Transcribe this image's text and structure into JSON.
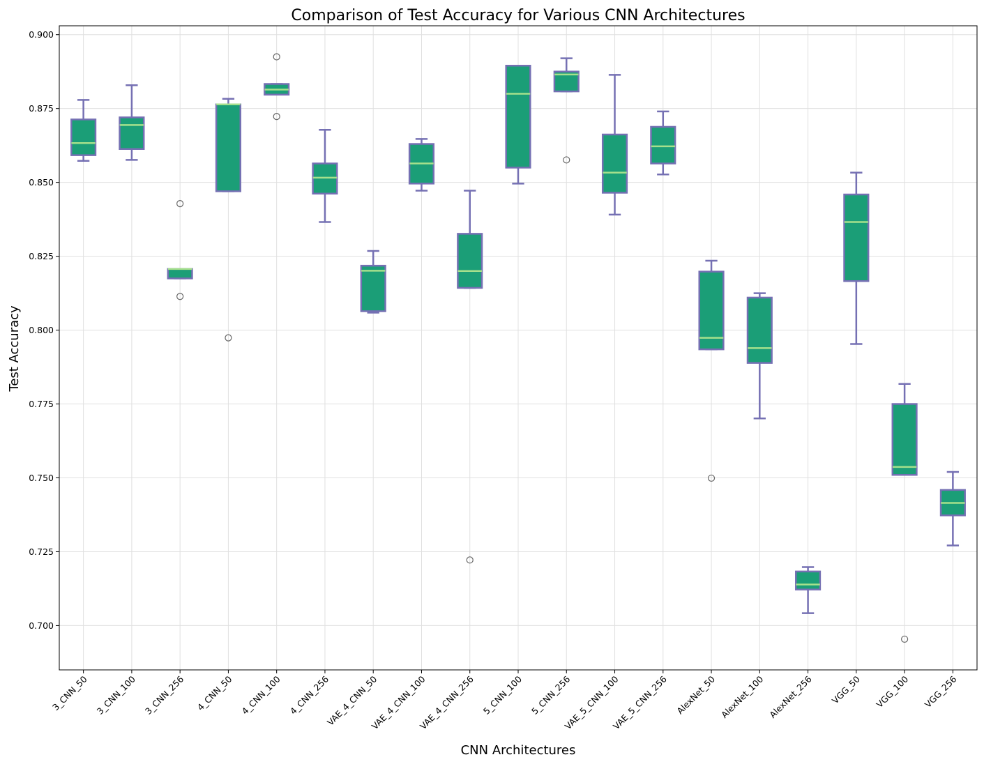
{
  "chart_data": {
    "type": "box",
    "title": "Comparison of Test Accuracy for Various CNN Architectures",
    "xlabel": "CNN Architectures",
    "ylabel": "Test Accuracy",
    "ylim": [
      0.685,
      0.903
    ],
    "yticks": [
      "0.700",
      "0.725",
      "0.750",
      "0.775",
      "0.800",
      "0.825",
      "0.850",
      "0.875",
      "0.900"
    ],
    "grid": true,
    "colors": {
      "box_fill": "#1b9e77",
      "box_edge": "#7570b3",
      "whisker": "#7570b3",
      "median": "#a6e08c",
      "outlier": "#666666"
    },
    "categories": [
      "3_CNN_50",
      "3_CNN_100",
      "3_CNN_256",
      "4_CNN_50",
      "4_CNN_100",
      "4_CNN_256",
      "VAE_4_CNN_50",
      "VAE_4_CNN_100",
      "VAE_4_CNN_256",
      "5_CNN_100",
      "5_CNN_256",
      "VAE_5_CNN_100",
      "VAE_5_CNN_256",
      "AlexNet_50",
      "AlexNet_100",
      "AlexNet_256",
      "VGG_50",
      "VGG_100",
      "VGG_256"
    ],
    "boxes": [
      {
        "whislo": 0.8573,
        "q1": 0.8592,
        "med": 0.8633,
        "q3": 0.8713,
        "whishi": 0.8779,
        "fliers": []
      },
      {
        "whislo": 0.8576,
        "q1": 0.8613,
        "med": 0.8694,
        "q3": 0.872,
        "whishi": 0.8829,
        "fliers": []
      },
      {
        "whislo": 0.8175,
        "q1": 0.8175,
        "med": 0.8207,
        "q3": 0.8207,
        "whishi": 0.8207,
        "fliers": [
          0.8428,
          0.8114
        ]
      },
      {
        "whislo": 0.847,
        "q1": 0.847,
        "med": 0.8764,
        "q3": 0.8764,
        "whishi": 0.8783,
        "fliers": [
          0.7974
        ]
      },
      {
        "whislo": 0.8797,
        "q1": 0.8797,
        "med": 0.8814,
        "q3": 0.8833,
        "whishi": 0.8833,
        "fliers": [
          0.8925,
          0.8723
        ]
      },
      {
        "whislo": 0.8366,
        "q1": 0.8462,
        "med": 0.8516,
        "q3": 0.8564,
        "whishi": 0.8678,
        "fliers": []
      },
      {
        "whislo": 0.8059,
        "q1": 0.8064,
        "med": 0.8201,
        "q3": 0.8218,
        "whishi": 0.8268,
        "fliers": []
      },
      {
        "whislo": 0.8472,
        "q1": 0.8496,
        "med": 0.8564,
        "q3": 0.863,
        "whishi": 0.8647,
        "fliers": []
      },
      {
        "whislo": 0.8143,
        "q1": 0.8143,
        "med": 0.82,
        "q3": 0.8326,
        "whishi": 0.8472,
        "fliers": [
          0.7222
        ]
      },
      {
        "whislo": 0.8496,
        "q1": 0.855,
        "med": 0.88,
        "q3": 0.8895,
        "whishi": 0.8895,
        "fliers": []
      },
      {
        "whislo": 0.8808,
        "q1": 0.8808,
        "med": 0.8865,
        "q3": 0.8875,
        "whishi": 0.892,
        "fliers": [
          0.8576
        ]
      },
      {
        "whislo": 0.8391,
        "q1": 0.8465,
        "med": 0.8533,
        "q3": 0.8662,
        "whishi": 0.8864,
        "fliers": []
      },
      {
        "whislo": 0.8527,
        "q1": 0.8564,
        "med": 0.8622,
        "q3": 0.8688,
        "whishi": 0.874,
        "fliers": []
      },
      {
        "whislo": 0.7935,
        "q1": 0.7935,
        "med": 0.7974,
        "q3": 0.8198,
        "whishi": 0.8235,
        "fliers": [
          0.7499
        ]
      },
      {
        "whislo": 0.7701,
        "q1": 0.7889,
        "med": 0.7939,
        "q3": 0.811,
        "whishi": 0.8125,
        "fliers": []
      },
      {
        "whislo": 0.7042,
        "q1": 0.7122,
        "med": 0.7139,
        "q3": 0.7183,
        "whishi": 0.7198,
        "fliers": []
      },
      {
        "whislo": 0.7953,
        "q1": 0.8166,
        "med": 0.8366,
        "q3": 0.8459,
        "whishi": 0.8533,
        "fliers": []
      },
      {
        "whislo": 0.751,
        "q1": 0.751,
        "med": 0.7537,
        "q3": 0.775,
        "whishi": 0.7818,
        "fliers": [
          0.6954
        ]
      },
      {
        "whislo": 0.7271,
        "q1": 0.7373,
        "med": 0.7415,
        "q3": 0.7459,
        "whishi": 0.752,
        "fliers": []
      }
    ]
  }
}
